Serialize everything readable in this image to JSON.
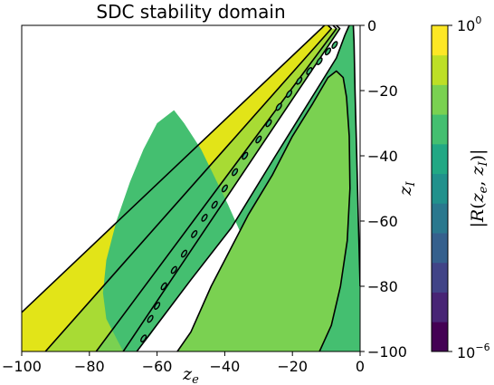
{
  "chart_data": {
    "type": "contour",
    "title": "SDC stability domain",
    "xlabel": "z_e",
    "ylabel": "z_I",
    "xlim": [
      -100,
      0
    ],
    "ylim": [
      -100,
      0
    ],
    "x_ticks": [
      -100,
      -80,
      -60,
      -40,
      -20,
      0
    ],
    "y_ticks": [
      0,
      -20,
      -40,
      -60,
      -80,
      -100
    ],
    "x_tick_labels": [
      "−100",
      "−80",
      "−60",
      "−40",
      "−20",
      "0"
    ],
    "y_tick_labels": [
      "0",
      "−20",
      "−40",
      "−60",
      "−80",
      "−100"
    ],
    "y_axis_side": "right",
    "colorbar": {
      "label": "|R(z_e, z_I)|",
      "scale": "log",
      "range": [
        1e-06,
        1
      ],
      "top_label_base": "10",
      "top_label_exp": "0",
      "bottom_label_base": "10",
      "bottom_label_exp": "−6",
      "colors": [
        "#440154",
        "#482575",
        "#414487",
        "#35608d",
        "#2a788e",
        "#21918c",
        "#22a884",
        "#44bf70",
        "#7ad151",
        "#bddf26",
        "#fde725"
      ]
    },
    "regions": [
      {
        "fill": "#e2e418",
        "vertices": [
          [
            -100,
            -88
          ],
          [
            -100,
            -100
          ],
          [
            -93,
            -100
          ],
          [
            -8.5,
            -1
          ],
          [
            -9.5,
            0
          ],
          [
            -10.5,
            0
          ]
        ]
      },
      {
        "fill": "#a8db34",
        "vertices": [
          [
            -93,
            -100
          ],
          [
            -78,
            -100
          ],
          [
            -7,
            -1
          ],
          [
            -8.5,
            -1
          ]
        ]
      },
      {
        "fill": "#7ad151",
        "vertices": [
          [
            -78,
            -100
          ],
          [
            -70,
            -100
          ],
          [
            -6,
            -1
          ],
          [
            -7,
            -1
          ]
        ]
      },
      {
        "fill": "#44bf70",
        "vertices": [
          [
            -70,
            -100
          ],
          [
            -66,
            -100
          ],
          [
            -62,
            -95
          ],
          [
            -58,
            -89
          ],
          [
            -50,
            -78
          ],
          [
            -38,
            -62
          ],
          [
            -25,
            -40
          ],
          [
            -13,
            -20
          ],
          [
            -7,
            -10
          ],
          [
            -4.5,
            -3
          ],
          [
            -3.2,
            0
          ],
          [
            -2,
            0
          ],
          [
            -1.8,
            -5
          ],
          [
            -1.5,
            -20
          ],
          [
            -1,
            -40
          ],
          [
            -0.5,
            -60
          ],
          [
            0,
            -80
          ],
          [
            0,
            -100
          ],
          [
            -15,
            -100
          ],
          [
            -18,
            -96
          ],
          [
            -23,
            -90
          ],
          [
            -30,
            -76
          ],
          [
            -39,
            -55
          ],
          [
            -47,
            -38
          ],
          [
            -52,
            -30
          ],
          [
            -55,
            -26
          ],
          [
            -60,
            -30
          ],
          [
            -64,
            -38
          ],
          [
            -68,
            -48
          ],
          [
            -72,
            -60
          ],
          [
            -75,
            -72
          ],
          [
            -76,
            -82
          ],
          [
            -75,
            -90
          ],
          [
            -72,
            -96
          ],
          [
            -70,
            -100
          ]
        ]
      },
      {
        "fill": "#7ad151",
        "vertices": [
          [
            -54,
            -100
          ],
          [
            -50,
            -94
          ],
          [
            -44,
            -80
          ],
          [
            -38,
            -68
          ],
          [
            -33,
            -58
          ],
          [
            -26,
            -46
          ],
          [
            -20,
            -34
          ],
          [
            -14,
            -24
          ],
          [
            -9.5,
            -16
          ],
          [
            -7,
            -14
          ],
          [
            -5,
            -16
          ],
          [
            -4,
            -22
          ],
          [
            -3.2,
            -34
          ],
          [
            -3,
            -50
          ],
          [
            -3.8,
            -66
          ],
          [
            -5.8,
            -80
          ],
          [
            -8.5,
            -92
          ],
          [
            -12,
            -100
          ]
        ]
      }
    ],
    "contours": [
      [
        [
          -100,
          -88
        ],
        [
          -10.5,
          0
        ]
      ],
      [
        [
          -93,
          -100
        ],
        [
          -8.5,
          -1
        ],
        [
          -9.5,
          0
        ]
      ],
      [
        [
          -78,
          -100
        ],
        [
          -7,
          -1
        ],
        [
          -8,
          0
        ]
      ],
      [
        [
          -70,
          -100
        ],
        [
          -6,
          -1
        ],
        [
          -7,
          0
        ]
      ],
      [
        [
          -66,
          -100
        ],
        [
          -58,
          -89
        ],
        [
          -50,
          -78
        ],
        [
          -38,
          -62
        ],
        [
          -25,
          -40
        ],
        [
          -13,
          -20
        ],
        [
          -7,
          -10
        ],
        [
          -4.5,
          -3
        ],
        [
          -3.2,
          0
        ]
      ],
      [
        [
          -54,
          -100
        ],
        [
          -50,
          -94
        ],
        [
          -44,
          -80
        ],
        [
          -38,
          -68
        ],
        [
          -33,
          -58
        ],
        [
          -26,
          -46
        ],
        [
          -20,
          -34
        ],
        [
          -14,
          -24
        ],
        [
          -9.5,
          -16
        ],
        [
          -7,
          -14
        ],
        [
          -5,
          -16
        ],
        [
          -4,
          -22
        ],
        [
          -3.2,
          -34
        ],
        [
          -3,
          -50
        ],
        [
          -3.8,
          -66
        ],
        [
          -5.8,
          -80
        ],
        [
          -8.5,
          -92
        ],
        [
          -12,
          -100
        ]
      ],
      [
        [
          -2,
          0
        ],
        [
          -1.8,
          -5
        ],
        [
          -1.5,
          -20
        ],
        [
          -1,
          -40
        ],
        [
          -0.5,
          -60
        ],
        [
          0,
          -80
        ]
      ]
    ],
    "blobs": [
      [
        -64,
        -96
      ],
      [
        -62,
        -90
      ],
      [
        -60,
        -86
      ],
      [
        -58,
        -80
      ],
      [
        -55,
        -75
      ],
      [
        -52,
        -70
      ],
      [
        -49,
        -64
      ],
      [
        -46,
        -59
      ],
      [
        -43,
        -55
      ],
      [
        -40,
        -50
      ],
      [
        -37,
        -45
      ],
      [
        -34,
        -40
      ],
      [
        -30,
        -35
      ],
      [
        -27,
        -30
      ],
      [
        -24,
        -25
      ],
      [
        -21,
        -21
      ],
      [
        -18,
        -17
      ],
      [
        -15,
        -14
      ],
      [
        -12,
        -11
      ],
      [
        -9.5,
        -8
      ],
      [
        -7.5,
        -6
      ]
    ]
  }
}
